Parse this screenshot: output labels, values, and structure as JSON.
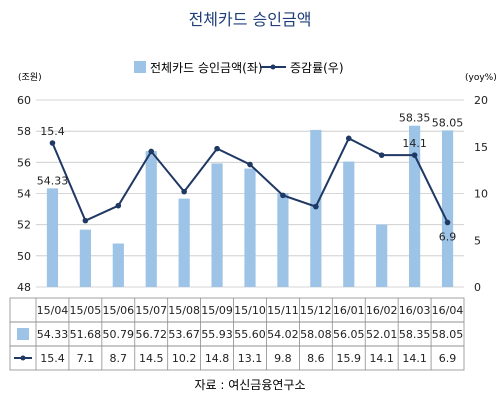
{
  "colors": {
    "title": "#1F3F7A",
    "bar": "#9DC3E6",
    "line": "#1F3864",
    "grid": "#C8C8C8",
    "axis_text": "#222222",
    "table_border": "#8C8C8C"
  },
  "chart_data": {
    "type": "bar",
    "title": "전체카드 승인금액",
    "categories": [
      "15/04",
      "15/05",
      "15/06",
      "15/07",
      "15/08",
      "15/09",
      "15/10",
      "15/11",
      "15/12",
      "16/01",
      "16/02",
      "16/03",
      "16/04"
    ],
    "left_axis": {
      "unit": "(조원)",
      "ylim": [
        48,
        60
      ],
      "ticks": [
        "48",
        "50",
        "52",
        "54",
        "56",
        "58",
        "60"
      ]
    },
    "right_axis": {
      "unit": "(yoy%)",
      "ylim": [
        0,
        20
      ],
      "ticks": [
        "0",
        "5",
        "10",
        "15",
        "20"
      ]
    },
    "series": [
      {
        "name": "전체카드 승인금액(좌)",
        "type": "bar",
        "axis": "left",
        "values": [
          54.33,
          51.68,
          50.79,
          56.72,
          53.67,
          55.93,
          55.6,
          54.02,
          58.08,
          56.05,
          52.01,
          58.35,
          58.05
        ],
        "labels": [
          "54.33",
          "51.68",
          "50.79",
          "56.72",
          "53.67",
          "55.93",
          "55.60",
          "54.02",
          "58.08",
          "56.05",
          "52.01",
          "58.35",
          "58.05"
        ]
      },
      {
        "name": "증감률(우)",
        "type": "line",
        "axis": "right",
        "values": [
          15.4,
          7.1,
          8.7,
          14.5,
          10.2,
          14.8,
          13.1,
          9.8,
          8.6,
          15.9,
          14.1,
          14.1,
          6.9
        ],
        "labels": [
          "15.4",
          "7.1",
          "8.7",
          "14.5",
          "10.2",
          "14.8",
          "13.1",
          "9.8",
          "8.6",
          "15.9",
          "14.1",
          "14.1",
          "6.9"
        ]
      }
    ],
    "annotations": [
      {
        "series": 0,
        "index": 0,
        "text": "54.33"
      },
      {
        "series": 1,
        "index": 0,
        "text": "15.4"
      },
      {
        "series": 0,
        "index": 11,
        "text": "58.35"
      },
      {
        "series": 1,
        "index": 11,
        "text": "14.1"
      },
      {
        "series": 0,
        "index": 12,
        "text": "58.05"
      },
      {
        "series": 1,
        "index": 12,
        "text": "6.9"
      }
    ],
    "grid": true,
    "legend": "top-center"
  },
  "source": "자료 : 여신금융연구소"
}
